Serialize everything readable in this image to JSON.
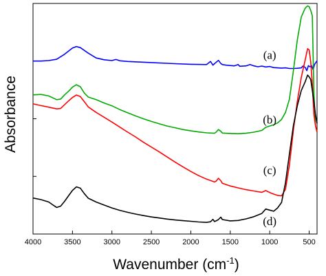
{
  "chart_data": {
    "type": "line",
    "title": "",
    "xlabel": "Wavenumber (cm",
    "xlabel_sup": "-1",
    "xlabel_close": ")",
    "ylabel": "Absorbance",
    "xlim": [
      4000,
      400
    ],
    "ylim": [
      0,
      1
    ],
    "x_ticks": [
      4000,
      3500,
      3000,
      2500,
      2000,
      1500,
      1000,
      500
    ],
    "y_tick_labels_shown": false,
    "grid": false,
    "series": [
      {
        "name": "(a)",
        "color": "#0000ff",
        "label_at": [
          1000,
          0.772
        ],
        "points": [
          [
            4000,
            0.744
          ],
          [
            3900,
            0.744
          ],
          [
            3800,
            0.746
          ],
          [
            3700,
            0.752
          ],
          [
            3600,
            0.775
          ],
          [
            3500,
            0.803
          ],
          [
            3450,
            0.81
          ],
          [
            3400,
            0.805
          ],
          [
            3300,
            0.78
          ],
          [
            3200,
            0.758
          ],
          [
            3100,
            0.75
          ],
          [
            3000,
            0.746
          ],
          [
            2950,
            0.751
          ],
          [
            2900,
            0.745
          ],
          [
            2800,
            0.742
          ],
          [
            2500,
            0.737
          ],
          [
            2200,
            0.732
          ],
          [
            2000,
            0.729
          ],
          [
            1800,
            0.728
          ],
          [
            1750,
            0.742
          ],
          [
            1720,
            0.725
          ],
          [
            1700,
            0.732
          ],
          [
            1650,
            0.747
          ],
          [
            1620,
            0.733
          ],
          [
            1600,
            0.728
          ],
          [
            1550,
            0.725
          ],
          [
            1450,
            0.722
          ],
          [
            1400,
            0.728
          ],
          [
            1380,
            0.72
          ],
          [
            1300,
            0.722
          ],
          [
            1250,
            0.728
          ],
          [
            1200,
            0.722
          ],
          [
            1150,
            0.718
          ],
          [
            1100,
            0.721
          ],
          [
            1050,
            0.717
          ],
          [
            1000,
            0.719
          ],
          [
            950,
            0.714
          ],
          [
            900,
            0.713
          ],
          [
            850,
            0.712
          ],
          [
            800,
            0.713
          ],
          [
            750,
            0.71
          ],
          [
            700,
            0.71
          ],
          [
            650,
            0.711
          ],
          [
            600,
            0.713
          ],
          [
            580,
            0.721
          ],
          [
            550,
            0.715
          ],
          [
            530,
            0.7
          ],
          [
            510,
            0.723
          ],
          [
            490,
            0.718
          ],
          [
            470,
            0.723
          ],
          [
            450,
            0.705
          ],
          [
            430,
            0.73
          ],
          [
            410,
            0.74
          ],
          [
            400,
            0.745
          ]
        ]
      },
      {
        "name": "(b)",
        "color": "#00aa00",
        "label_at": [
          1000,
          0.478
        ],
        "points": [
          [
            4000,
            0.59
          ],
          [
            3900,
            0.592
          ],
          [
            3800,
            0.585
          ],
          [
            3700,
            0.568
          ],
          [
            3650,
            0.571
          ],
          [
            3600,
            0.59
          ],
          [
            3550,
            0.606
          ],
          [
            3500,
            0.625
          ],
          [
            3450,
            0.636
          ],
          [
            3400,
            0.627
          ],
          [
            3350,
            0.598
          ],
          [
            3300,
            0.58
          ],
          [
            3200,
            0.568
          ],
          [
            3100,
            0.553
          ],
          [
            3000,
            0.54
          ],
          [
            2900,
            0.523
          ],
          [
            2800,
            0.508
          ],
          [
            2700,
            0.494
          ],
          [
            2600,
            0.481
          ],
          [
            2500,
            0.469
          ],
          [
            2400,
            0.458
          ],
          [
            2300,
            0.448
          ],
          [
            2200,
            0.44
          ],
          [
            2100,
            0.432
          ],
          [
            2000,
            0.426
          ],
          [
            1900,
            0.421
          ],
          [
            1800,
            0.417
          ],
          [
            1700,
            0.415
          ],
          [
            1680,
            0.42
          ],
          [
            1650,
            0.432
          ],
          [
            1620,
            0.424
          ],
          [
            1600,
            0.416
          ],
          [
            1500,
            0.414
          ],
          [
            1400,
            0.413
          ],
          [
            1300,
            0.415
          ],
          [
            1200,
            0.42
          ],
          [
            1100,
            0.428
          ],
          [
            1050,
            0.442
          ],
          [
            1000,
            0.448
          ],
          [
            950,
            0.454
          ],
          [
            900,
            0.462
          ],
          [
            850,
            0.478
          ],
          [
            800,
            0.51
          ],
          [
            750,
            0.57
          ],
          [
            700,
            0.7
          ],
          [
            650,
            0.84
          ],
          [
            600,
            0.945
          ],
          [
            550,
            0.985
          ],
          [
            520,
            0.995
          ],
          [
            500,
            0.992
          ],
          [
            480,
            0.975
          ],
          [
            460,
            0.95
          ],
          [
            440,
            0.6
          ],
          [
            420,
            0.45
          ],
          [
            400,
            0.42
          ]
        ]
      },
      {
        "name": "(c)",
        "color": "#ff0000",
        "label_at": [
          1000,
          0.248
        ],
        "points": [
          [
            4000,
            0.549
          ],
          [
            3900,
            0.541
          ],
          [
            3800,
            0.534
          ],
          [
            3700,
            0.526
          ],
          [
            3650,
            0.528
          ],
          [
            3600,
            0.545
          ],
          [
            3550,
            0.562
          ],
          [
            3500,
            0.578
          ],
          [
            3450,
            0.589
          ],
          [
            3400,
            0.582
          ],
          [
            3350,
            0.559
          ],
          [
            3300,
            0.535
          ],
          [
            3200,
            0.51
          ],
          [
            3100,
            0.488
          ],
          [
            3000,
            0.466
          ],
          [
            2900,
            0.443
          ],
          [
            2800,
            0.42
          ],
          [
            2700,
            0.398
          ],
          [
            2600,
            0.374
          ],
          [
            2500,
            0.352
          ],
          [
            2400,
            0.33
          ],
          [
            2300,
            0.307
          ],
          [
            2200,
            0.284
          ],
          [
            2100,
            0.262
          ],
          [
            2000,
            0.241
          ],
          [
            1900,
            0.222
          ],
          [
            1800,
            0.206
          ],
          [
            1700,
            0.193
          ],
          [
            1680,
            0.197
          ],
          [
            1650,
            0.21
          ],
          [
            1620,
            0.199
          ],
          [
            1600,
            0.187
          ],
          [
            1500,
            0.175
          ],
          [
            1400,
            0.166
          ],
          [
            1300,
            0.158
          ],
          [
            1200,
            0.152
          ],
          [
            1100,
            0.146
          ],
          [
            1050,
            0.154
          ],
          [
            1000,
            0.145
          ],
          [
            950,
            0.138
          ],
          [
            900,
            0.132
          ],
          [
            850,
            0.13
          ],
          [
            800,
            0.16
          ],
          [
            750,
            0.27
          ],
          [
            700,
            0.43
          ],
          [
            650,
            0.56
          ],
          [
            600,
            0.67
          ],
          [
            550,
            0.75
          ],
          [
            520,
            0.8
          ],
          [
            500,
            0.795
          ],
          [
            480,
            0.74
          ],
          [
            460,
            0.64
          ],
          [
            440,
            0.5
          ],
          [
            420,
            0.45
          ],
          [
            400,
            0.42
          ]
        ]
      },
      {
        "name": "(d)",
        "color": "#000000",
        "label_at": [
          1000,
          0.016
        ],
        "points": [
          [
            4000,
            0.12
          ],
          [
            3900,
            0.113
          ],
          [
            3800,
            0.102
          ],
          [
            3750,
            0.089
          ],
          [
            3700,
            0.077
          ],
          [
            3650,
            0.083
          ],
          [
            3600,
            0.105
          ],
          [
            3550,
            0.13
          ],
          [
            3500,
            0.155
          ],
          [
            3450,
            0.171
          ],
          [
            3400,
            0.165
          ],
          [
            3350,
            0.14
          ],
          [
            3300,
            0.119
          ],
          [
            3200,
            0.102
          ],
          [
            3100,
            0.088
          ],
          [
            3000,
            0.075
          ],
          [
            2900,
            0.064
          ],
          [
            2800,
            0.055
          ],
          [
            2700,
            0.047
          ],
          [
            2600,
            0.04
          ],
          [
            2500,
            0.034
          ],
          [
            2400,
            0.029
          ],
          [
            2300,
            0.024
          ],
          [
            2200,
            0.02
          ],
          [
            2100,
            0.017
          ],
          [
            2000,
            0.014
          ],
          [
            1900,
            0.011
          ],
          [
            1800,
            0.009
          ],
          [
            1750,
            0.012
          ],
          [
            1720,
            0.023
          ],
          [
            1700,
            0.013
          ],
          [
            1680,
            0.016
          ],
          [
            1650,
            0.022
          ],
          [
            1620,
            0.033
          ],
          [
            1600,
            0.022
          ],
          [
            1500,
            0.016
          ],
          [
            1400,
            0.018
          ],
          [
            1300,
            0.025
          ],
          [
            1200,
            0.035
          ],
          [
            1100,
            0.05
          ],
          [
            1050,
            0.07
          ],
          [
            1000,
            0.065
          ],
          [
            950,
            0.06
          ],
          [
            900,
            0.075
          ],
          [
            850,
            0.1
          ],
          [
            800,
            0.19
          ],
          [
            750,
            0.32
          ],
          [
            700,
            0.45
          ],
          [
            650,
            0.54
          ],
          [
            600,
            0.61
          ],
          [
            550,
            0.65
          ],
          [
            520,
            0.68
          ],
          [
            500,
            0.672
          ],
          [
            480,
            0.66
          ],
          [
            460,
            0.61
          ],
          [
            440,
            0.56
          ],
          [
            420,
            0.5
          ],
          [
            400,
            0.46
          ]
        ]
      }
    ]
  }
}
